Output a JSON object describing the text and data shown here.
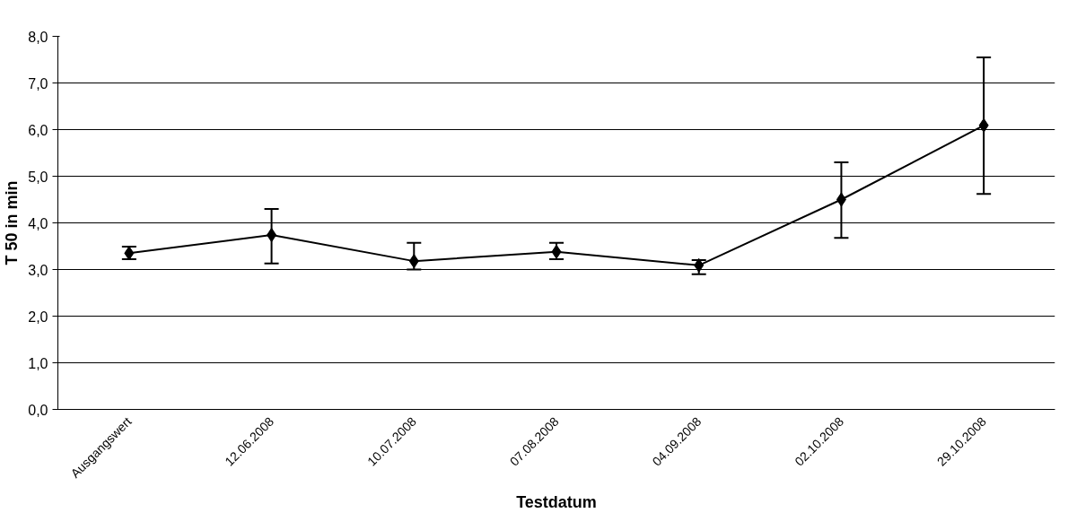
{
  "chart_data": {
    "type": "line",
    "xlabel": "Testdatum",
    "ylabel": "T 50 in min",
    "categories": [
      "Ausgangswert",
      "12.06.2008",
      "10.07.2008",
      "07.08.2008",
      "04.09.2008",
      "02.10.2008",
      "29.10.2008"
    ],
    "series": [
      {
        "color": "#000000",
        "values": [
          3.35,
          3.74,
          3.18,
          3.38,
          3.09,
          4.5,
          6.09
        ],
        "errors": [
          [
            3.22,
            3.49
          ],
          [
            3.13,
            4.3
          ],
          [
            3.0,
            3.57
          ],
          [
            3.22,
            3.57
          ],
          [
            2.9,
            3.2
          ],
          [
            3.68,
            5.3
          ],
          [
            4.62,
            7.55
          ]
        ]
      }
    ],
    "ylim": [
      0,
      8
    ],
    "yticks": [
      {
        "value": 0,
        "label": "0,0"
      },
      {
        "value": 1,
        "label": "1,0"
      },
      {
        "value": 2,
        "label": "2,0"
      },
      {
        "value": 3,
        "label": "3,0"
      },
      {
        "value": 4,
        "label": "4,0"
      },
      {
        "value": 5,
        "label": "5,0"
      },
      {
        "value": 6,
        "label": "6,0"
      },
      {
        "value": 7,
        "label": "7,0"
      },
      {
        "value": 8,
        "label": "8,0"
      }
    ],
    "grid": "y",
    "marker": "diamond",
    "line_style": "solid"
  }
}
